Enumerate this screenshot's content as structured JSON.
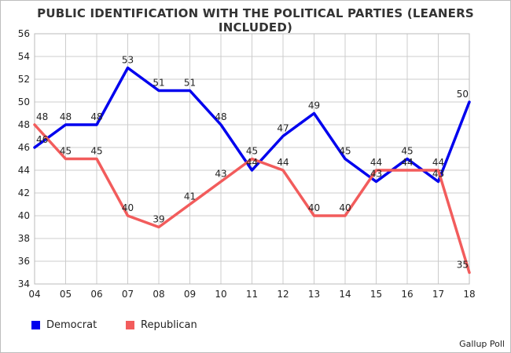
{
  "chart_data": {
    "type": "line",
    "title": "PUBLIC IDENTIFICATION WITH THE POLITICAL PARTIES (LEANERS INCLUDED)",
    "x": [
      "04",
      "05",
      "06",
      "07",
      "08",
      "09",
      "10",
      "11",
      "12",
      "13",
      "14",
      "15",
      "16",
      "17",
      "18"
    ],
    "ylim": [
      34,
      56
    ],
    "yticks": [
      34,
      36,
      38,
      40,
      42,
      44,
      46,
      48,
      50,
      52,
      54,
      56
    ],
    "grid": true,
    "legend_position": "bottom-left",
    "series": [
      {
        "name": "Democrat",
        "color": "#0000ee",
        "values": [
          46,
          48,
          48,
          53,
          51,
          51,
          48,
          44,
          47,
          49,
          45,
          43,
          45,
          43,
          50
        ]
      },
      {
        "name": "Republican",
        "color": "#f25c5c",
        "values": [
          48,
          45,
          45,
          40,
          39,
          41,
          43,
          45,
          44,
          40,
          40,
          44,
          44,
          44,
          35
        ]
      }
    ]
  },
  "source": "Gallup Poll"
}
